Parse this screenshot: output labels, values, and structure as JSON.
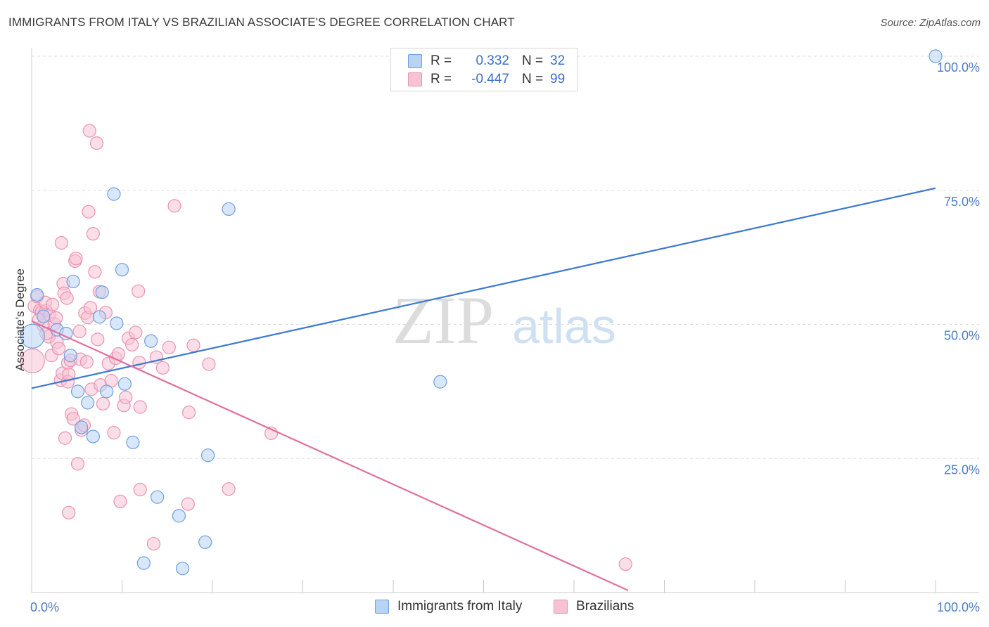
{
  "title": "IMMIGRANTS FROM ITALY VS BRAZILIAN ASSOCIATE'S DEGREE CORRELATION CHART",
  "source": "Source: ZipAtlas.com",
  "watermark": {
    "zip": "ZIP",
    "atlas": "atlas"
  },
  "colors": {
    "blue": "#3a78d4",
    "blue_fill": "#b9d3f5",
    "blue_stroke": "#6e9fe0",
    "pink": "#e0709a",
    "pink_fill": "#f7c3d4",
    "pink_stroke": "#ea92b1",
    "grid": "#dddddd",
    "tick_text": "#4a7cc7"
  },
  "legend": {
    "italy": {
      "r_label": "R =",
      "r_value": "0.332",
      "n_label": "N =",
      "n_value": "32"
    },
    "brazil": {
      "r_label": "R =",
      "r_value": "-0.447",
      "n_label": "N =",
      "n_value": "99"
    }
  },
  "bottom_legend": {
    "italy": "Immigrants from Italy",
    "brazil": "Brazilians"
  },
  "chart_data": {
    "type": "scatter",
    "title": "IMMIGRANTS FROM ITALY VS BRAZILIAN ASSOCIATE'S DEGREE CORRELATION CHART",
    "xlabel": "",
    "ylabel": "Associate's Degree",
    "xlim": [
      0,
      100
    ],
    "ylim": [
      0,
      102
    ],
    "x_tick_labels": [
      "0.0%",
      "100.0%"
    ],
    "y_ticks": [
      25,
      50,
      75,
      100
    ],
    "y_tick_labels": [
      "25.0%",
      "50.0%",
      "75.0%",
      "100.0%"
    ],
    "grid": true,
    "series": [
      {
        "name": "Immigrants from Italy",
        "color": "blue",
        "trend": {
          "x": [
            0,
            100
          ],
          "y": [
            38.1,
            75.4
          ]
        },
        "points": [
          [
            0.1,
            47.8,
            "large"
          ],
          [
            0.6,
            55.5
          ],
          [
            1.3,
            51.5
          ],
          [
            2.8,
            49
          ],
          [
            3.8,
            48.3
          ],
          [
            4.3,
            44.2
          ],
          [
            4.6,
            58
          ],
          [
            5.1,
            37.5
          ],
          [
            5.5,
            30.8
          ],
          [
            6.2,
            35.4
          ],
          [
            6.8,
            29.1
          ],
          [
            7.5,
            51.4
          ],
          [
            7.8,
            56
          ],
          [
            8.3,
            37.5
          ],
          [
            9.1,
            74.3
          ],
          [
            9.4,
            50.2
          ],
          [
            10,
            60.2
          ],
          [
            10.3,
            38.9
          ],
          [
            11.2,
            28
          ],
          [
            12.4,
            5.5
          ],
          [
            13.2,
            46.9
          ],
          [
            13.9,
            17.8
          ],
          [
            16.3,
            14.3
          ],
          [
            16.7,
            4.5
          ],
          [
            19.2,
            9.4
          ],
          [
            19.5,
            25.6
          ],
          [
            21.8,
            71.5
          ],
          [
            45.2,
            39.3
          ],
          [
            100,
            100
          ]
        ]
      },
      {
        "name": "Brazilians",
        "color": "pink",
        "trend": {
          "x": [
            0,
            66
          ],
          "y": [
            50.6,
            0.4
          ]
        },
        "points": [
          [
            0.1,
            43.2,
            "large"
          ],
          [
            0.3,
            53.4
          ],
          [
            0.6,
            55.2
          ],
          [
            0.9,
            52.6
          ],
          [
            1.1,
            52.3
          ],
          [
            1.3,
            49.8
          ],
          [
            1.6,
            52.5
          ],
          [
            1.9,
            47.7
          ],
          [
            1.5,
            54.1
          ],
          [
            2,
            51.7
          ],
          [
            2.3,
            53.7
          ],
          [
            2.5,
            50.1
          ],
          [
            2.8,
            46.7
          ],
          [
            2.2,
            44.2
          ],
          [
            3,
            45.5
          ],
          [
            3.2,
            39.6
          ],
          [
            3.4,
            40.9
          ],
          [
            3.5,
            57.6
          ],
          [
            3.3,
            65.2
          ],
          [
            3.6,
            55.8
          ],
          [
            3.9,
            54.9
          ],
          [
            3.7,
            28.8
          ],
          [
            4,
            39.3
          ],
          [
            4,
            42.8
          ],
          [
            4.1,
            40.7
          ],
          [
            4.3,
            43.3
          ],
          [
            4.4,
            33.3
          ],
          [
            4.6,
            32.4
          ],
          [
            4.8,
            61.8
          ],
          [
            4.9,
            62.3
          ],
          [
            5.1,
            24
          ],
          [
            5.3,
            48.7
          ],
          [
            5.4,
            43.5
          ],
          [
            5.5,
            30.3
          ],
          [
            5.8,
            31.2
          ],
          [
            5.9,
            52.1
          ],
          [
            6.1,
            43
          ],
          [
            6.2,
            51.3
          ],
          [
            6.3,
            71
          ],
          [
            6.5,
            53.1
          ],
          [
            6.6,
            37.9
          ],
          [
            6.8,
            66.9
          ],
          [
            7,
            59.8
          ],
          [
            7.2,
            83.8
          ],
          [
            7.3,
            47.2
          ],
          [
            7.5,
            56.1
          ],
          [
            7.6,
            38.7
          ],
          [
            7.9,
            35.2
          ],
          [
            8.2,
            52.2
          ],
          [
            8.5,
            42.7
          ],
          [
            8.8,
            39.5
          ],
          [
            9.1,
            29.8
          ],
          [
            9.3,
            43.7
          ],
          [
            9.6,
            44.5
          ],
          [
            9.8,
            17
          ],
          [
            10.2,
            34.9
          ],
          [
            10.4,
            36.4
          ],
          [
            10.7,
            47.4
          ],
          [
            11.1,
            46.2
          ],
          [
            11.5,
            48.5
          ],
          [
            11.8,
            56.2
          ],
          [
            11.9,
            42.9
          ],
          [
            12,
            34.6
          ],
          [
            13.5,
            9.1
          ],
          [
            13.8,
            43.9
          ],
          [
            14.5,
            41.9
          ],
          [
            15.2,
            45.7
          ],
          [
            15.8,
            72.1
          ],
          [
            17.3,
            16.5
          ],
          [
            17.4,
            33.6
          ],
          [
            17.9,
            46.1
          ],
          [
            19.6,
            42.6
          ],
          [
            21.8,
            19.3
          ],
          [
            26.5,
            29.7
          ],
          [
            4.1,
            14.9
          ],
          [
            6.4,
            86.1
          ],
          [
            12,
            19.2
          ],
          [
            1.6,
            48.3
          ],
          [
            2.7,
            51.2
          ],
          [
            0.8,
            50.9
          ],
          [
            65.7,
            5.3
          ]
        ]
      }
    ]
  }
}
